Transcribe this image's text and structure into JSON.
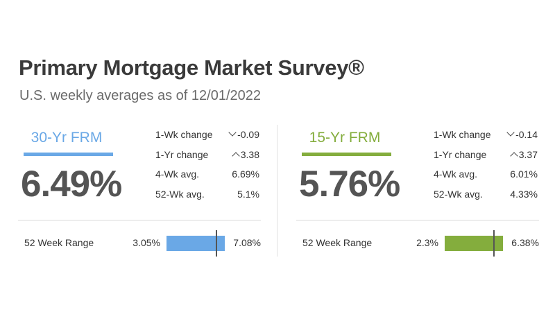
{
  "title": "Primary Mortgage Market Survey®",
  "subtitle": "U.S. weekly averages as of 12/01/2022",
  "panels": [
    {
      "rate_label": "30-Yr FRM",
      "rate_value": "6.49%",
      "current_rate": 6.49,
      "accent_color": "#6aa8e6",
      "metrics": [
        {
          "label": "1-Wk change",
          "value": "-0.09",
          "direction": "down"
        },
        {
          "label": "1-Yr change",
          "value": "3.38",
          "direction": "up"
        },
        {
          "label": "4-Wk avg.",
          "value": "6.69%"
        },
        {
          "label": "52-Wk avg.",
          "value": "5.1%"
        }
      ],
      "range": {
        "label": "52 Week Range",
        "low_text": "3.05%",
        "high_text": "7.08%",
        "low": 3.05,
        "high": 7.08
      }
    },
    {
      "rate_label": "15-Yr FRM",
      "rate_value": "5.76%",
      "current_rate": 5.76,
      "accent_color": "#84ad3d",
      "metrics": [
        {
          "label": "1-Wk change",
          "value": "-0.14",
          "direction": "down"
        },
        {
          "label": "1-Yr change",
          "value": "3.37",
          "direction": "up"
        },
        {
          "label": "4-Wk avg.",
          "value": "6.01%"
        },
        {
          "label": "52-Wk avg.",
          "value": "4.33%"
        }
      ],
      "range": {
        "label": "52 Week Range",
        "low_text": "2.3%",
        "high_text": "6.38%",
        "low": 2.3,
        "high": 6.38
      }
    }
  ]
}
